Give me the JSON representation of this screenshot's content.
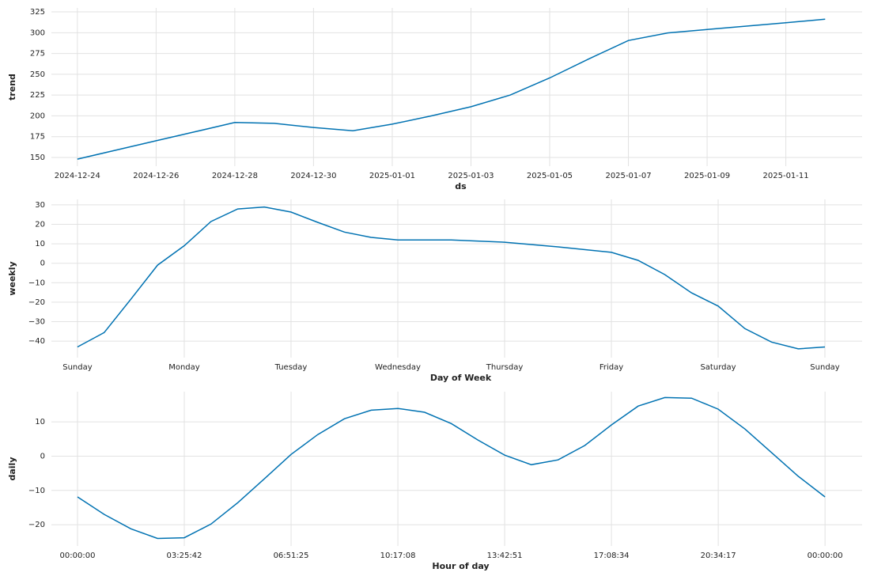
{
  "chart_data": [
    {
      "type": "line",
      "ylabel": "trend",
      "xlabel": "ds",
      "color": "#0072b2",
      "grid": true,
      "x": [
        "2024-12-24",
        "2024-12-25",
        "2024-12-26",
        "2024-12-27",
        "2024-12-28",
        "2024-12-29",
        "2024-12-30",
        "2024-12-31",
        "2025-01-01",
        "2025-01-02",
        "2025-01-03",
        "2025-01-04",
        "2025-01-05",
        "2025-01-06",
        "2025-01-07",
        "2025-01-08",
        "2025-01-09",
        "2025-01-10",
        "2025-01-11",
        "2025-01-12"
      ],
      "values": [
        148,
        159,
        170,
        181,
        192,
        191,
        186,
        182,
        190,
        200,
        211,
        225,
        245.6,
        268.6,
        290.6,
        299.7,
        303.8,
        307.9,
        312,
        316.2
      ],
      "xlim": [
        "2024-12-23T08:10",
        "2025-01-12T22:30"
      ],
      "xticks": [
        "2024-12-24",
        "2024-12-26",
        "2024-12-28",
        "2024-12-30",
        "2025-01-01",
        "2025-01-03",
        "2025-01-05",
        "2025-01-07",
        "2025-01-09",
        "2025-01-11"
      ],
      "ylim": [
        139.5,
        329.8
      ],
      "yticks": [
        150,
        175,
        200,
        225,
        250,
        275,
        300,
        325
      ]
    },
    {
      "type": "line",
      "ylabel": "weekly",
      "xlabel": "Day of Week",
      "color": "#0072b2",
      "grid": true,
      "x": [
        0,
        0.25,
        0.5,
        0.75,
        1,
        1.25,
        1.5,
        1.75,
        2,
        2.25,
        2.5,
        2.75,
        3,
        3.5,
        4,
        4.5,
        5,
        5.25,
        5.5,
        5.75,
        6,
        6.25,
        6.5,
        6.75,
        7
      ],
      "values": [
        -43,
        -35.6,
        -18.5,
        -1,
        9,
        21.4,
        27.9,
        28.9,
        26.3,
        21,
        16,
        13.3,
        12,
        12,
        10.8,
        8.4,
        5.6,
        1.5,
        -5.8,
        -15.2,
        -22,
        -33.6,
        -40.5,
        -44,
        -43
      ],
      "xlim": [
        -0.244,
        7.348
      ],
      "xticks": [
        {
          "value": 0,
          "label": "Sunday"
        },
        {
          "value": 1,
          "label": "Monday"
        },
        {
          "value": 2,
          "label": "Tuesday"
        },
        {
          "value": 3,
          "label": "Wednesday"
        },
        {
          "value": 4,
          "label": "Thursday"
        },
        {
          "value": 5,
          "label": "Friday"
        },
        {
          "value": 6,
          "label": "Saturday"
        },
        {
          "value": 7,
          "label": "Sunday"
        }
      ],
      "ylim": [
        -48.5,
        32.8
      ],
      "yticks": [
        {
          "value": -40,
          "label": "−40"
        },
        {
          "value": -30,
          "label": "−30"
        },
        {
          "value": -20,
          "label": "−20"
        },
        {
          "value": -10,
          "label": "−10"
        },
        0,
        10,
        20,
        30
      ]
    },
    {
      "type": "line",
      "ylabel": "daily",
      "xlabel": "Hour of day",
      "color": "#0072b2",
      "grid": true,
      "x": [
        0,
        0.857,
        1.714,
        2.571,
        3.429,
        4.286,
        5.143,
        6,
        6.857,
        7.714,
        8.571,
        9.429,
        10.286,
        11.143,
        12,
        12.857,
        13.714,
        14.571,
        15.429,
        16.286,
        17.143,
        18,
        18.857,
        19.714,
        20.571,
        21.429,
        22.286,
        23.143,
        24
      ],
      "values": [
        -11.9,
        -17,
        -21.2,
        -24,
        -23.8,
        -19.8,
        -13.6,
        -6.6,
        0.5,
        6.3,
        10.9,
        13.4,
        13.9,
        12.8,
        9.5,
        4.7,
        0.3,
        -2.5,
        -1.1,
        3.1,
        9.1,
        14.6,
        17.1,
        16.9,
        13.7,
        7.9,
        1,
        -5.9,
        -11.9
      ],
      "xlim": [
        -0.838,
        25.19
      ],
      "xticks": [
        {
          "value": 0,
          "label": "00:00:00"
        },
        {
          "value": 3.4286,
          "label": "03:25:42"
        },
        {
          "value": 6.8571,
          "label": "06:51:25"
        },
        {
          "value": 10.2857,
          "label": "10:17:08"
        },
        {
          "value": 13.7143,
          "label": "13:42:51"
        },
        {
          "value": 17.1429,
          "label": "17:08:34"
        },
        {
          "value": 20.5714,
          "label": "20:34:17"
        },
        {
          "value": 24,
          "label": "00:00:00"
        }
      ],
      "ylim": [
        -26.2,
        18.8
      ],
      "yticks": [
        {
          "value": -20,
          "label": "−20"
        },
        {
          "value": -10,
          "label": "−10"
        },
        0,
        10
      ]
    }
  ]
}
